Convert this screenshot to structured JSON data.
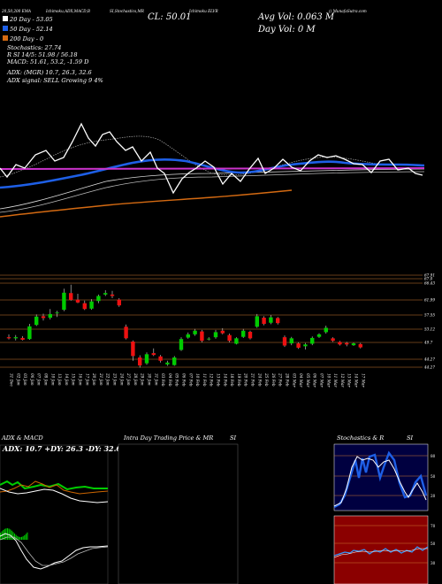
{
  "header": {
    "topline": [
      "20,50,200  EMA",
      "Ichimoku,ADX,MACD,B",
      "SI,Stochastics,MR",
      "Ichimoku ELVR",
      "() MunafaSutra.com"
    ],
    "ema20": "20 Day - 53.05",
    "ema50": "50 Day - 52.14",
    "ema200": "200 Day - 0",
    "stochastics": "Stochastics: 27.74",
    "rsi_line": "R                    SI 14/5: 51.98 / 56.18",
    "macd_line": "MACD: 51.61, 53.2, -1.59 D",
    "adx_line": "ADX:                         (MGR) 10.7, 26.3, 32.6",
    "adx_signal": "ADX  signal: SELL Growing 9 4%",
    "close": "CL: 50.01",
    "avg_vol": "Avg Vol: 0.063  M",
    "day_vol": "Day Vol: 0   M"
  },
  "panels": {
    "adx_macd": "ADX  & MACD",
    "adx_overlay": "ADX: 10.7 +DY: 26.3 -DY: 32.6",
    "intra": "Intra  Day Trading Price  & MR",
    "intra_si": "SI",
    "stoch": "Stochastics  & R",
    "stoch_si": "SI"
  },
  "colors": {
    "price_line": "#ffffff",
    "ema50_line": "#1e5fe6",
    "ema200_line": "#d46a12",
    "bb_band": "#cc33cc",
    "candle_up": "#00cc00",
    "candle_down": "#ee1111",
    "stoch_bg": "#000040",
    "rsi_bg": "#8b0000"
  },
  "chart_data": {
    "type": "candlestick",
    "price_levels": [
      "67.91",
      "67.0",
      "66.43",
      "61.99",
      "57.55",
      "53.12",
      "49.7",
      "44.27",
      "44.27"
    ],
    "dates": [
      "31 Dec",
      "02 Jan",
      "03 Jan",
      "06 Jan",
      "07 Jan",
      "08 Jan",
      "10 Jan",
      "13 Jan",
      "14 Jan",
      "15 Jan",
      "16 Jan",
      "17 Jan",
      "20 Jan",
      "21 Jan",
      "22 Jan",
      "23 Jan",
      "24 Jan",
      "27 Jan",
      "28 Jan",
      "29 Jan",
      "30 Jan",
      "31 Jan",
      "03 Feb",
      "04 Feb",
      "05 Feb",
      "06 Feb",
      "07 Feb",
      "10 Feb",
      "11 Feb",
      "12 Feb",
      "13 Feb",
      "14 Feb",
      "18 Feb",
      "19 Feb",
      "20 Feb",
      "21 Feb",
      "24 Feb",
      "25 Feb",
      "26 Feb",
      "27 Feb",
      "28 Feb",
      "03 Mar",
      "04 Mar",
      "05 Mar",
      "06 Mar",
      "07 Mar",
      "10 Mar",
      "11 Mar",
      "12 Mar",
      "13 Mar",
      "14 Mar",
      "17 Mar"
    ],
    "candles": [
      {
        "o": 52.8,
        "h": 53.6,
        "l": 52.2,
        "c": 52.5
      },
      {
        "o": 52.5,
        "h": 53.4,
        "l": 51.9,
        "c": 52.8
      },
      {
        "o": 52.6,
        "h": 53.1,
        "l": 51.9,
        "c": 52.1
      },
      {
        "o": 52.3,
        "h": 56.5,
        "l": 52.1,
        "c": 55.8
      },
      {
        "o": 56.2,
        "h": 59.1,
        "l": 55.9,
        "c": 58.5
      },
      {
        "o": 58.6,
        "h": 59.3,
        "l": 57.4,
        "c": 58.1
      },
      {
        "o": 58.2,
        "h": 60.6,
        "l": 57.7,
        "c": 59.2
      },
      {
        "o": 59.4,
        "h": 60.1,
        "l": 58.4,
        "c": 59.6
      },
      {
        "o": 60.4,
        "h": 66.2,
        "l": 60.0,
        "c": 65.1
      },
      {
        "o": 65.0,
        "h": 67.3,
        "l": 62.9,
        "c": 63.1
      },
      {
        "o": 63.2,
        "h": 64.8,
        "l": 62.2,
        "c": 62.4
      },
      {
        "o": 62.2,
        "h": 62.9,
        "l": 60.3,
        "c": 60.6
      },
      {
        "o": 60.7,
        "h": 63.3,
        "l": 60.4,
        "c": 62.7
      },
      {
        "o": 62.8,
        "h": 64.6,
        "l": 62.2,
        "c": 64.2
      },
      {
        "o": 64.6,
        "h": 65.8,
        "l": 64.2,
        "c": 65.0
      },
      {
        "o": 64.6,
        "h": 65.6,
        "l": 63.6,
        "c": 64.2
      },
      {
        "o": 63.2,
        "h": 63.6,
        "l": 61.2,
        "c": 61.6
      },
      {
        "o": 55.7,
        "h": 56.3,
        "l": 52.2,
        "c": 52.5
      },
      {
        "o": 51.6,
        "h": 51.9,
        "l": 46.3,
        "c": 47.6
      },
      {
        "o": 47.2,
        "h": 47.8,
        "l": 44.4,
        "c": 45.0
      },
      {
        "o": 45.6,
        "h": 48.6,
        "l": 45.2,
        "c": 48.1
      },
      {
        "o": 48.4,
        "h": 49.7,
        "l": 47.6,
        "c": 47.9
      },
      {
        "o": 47.5,
        "h": 47.9,
        "l": 45.8,
        "c": 46.3
      },
      {
        "o": 45.3,
        "h": 46.3,
        "l": 44.9,
        "c": 45.8
      },
      {
        "o": 45.1,
        "h": 47.6,
        "l": 44.9,
        "c": 47.2
      },
      {
        "o": 49.3,
        "h": 52.8,
        "l": 49.0,
        "c": 52.3
      },
      {
        "o": 52.7,
        "h": 54.1,
        "l": 52.4,
        "c": 53.6
      },
      {
        "o": 53.6,
        "h": 55.1,
        "l": 53.2,
        "c": 54.6
      },
      {
        "o": 54.4,
        "h": 54.8,
        "l": 51.4,
        "c": 51.8
      },
      {
        "o": 52.2,
        "h": 52.8,
        "l": 51.9,
        "c": 52.4
      },
      {
        "o": 52.8,
        "h": 54.8,
        "l": 52.4,
        "c": 54.2
      },
      {
        "o": 54.6,
        "h": 55.3,
        "l": 53.6,
        "c": 53.9
      },
      {
        "o": 53.4,
        "h": 53.8,
        "l": 51.4,
        "c": 51.8
      },
      {
        "o": 51.0,
        "h": 52.8,
        "l": 50.8,
        "c": 52.5
      },
      {
        "o": 52.9,
        "h": 55.1,
        "l": 52.6,
        "c": 54.6
      },
      {
        "o": 54.3,
        "h": 54.6,
        "l": 52.2,
        "c": 52.5
      },
      {
        "o": 55.7,
        "h": 59.2,
        "l": 55.4,
        "c": 58.6
      },
      {
        "o": 58.2,
        "h": 58.6,
        "l": 56.1,
        "c": 56.5
      },
      {
        "o": 56.8,
        "h": 58.9,
        "l": 56.4,
        "c": 58.3
      },
      {
        "o": 58.1,
        "h": 58.4,
        "l": 56.3,
        "c": 56.7
      },
      {
        "o": 52.8,
        "h": 53.3,
        "l": 50.1,
        "c": 50.5
      },
      {
        "o": 51.1,
        "h": 52.9,
        "l": 50.6,
        "c": 52.5
      },
      {
        "o": 51.1,
        "h": 51.4,
        "l": 49.6,
        "c": 49.9
      },
      {
        "o": 50.3,
        "h": 51.2,
        "l": 49.4,
        "c": 50.8
      },
      {
        "o": 51.0,
        "h": 53.0,
        "l": 50.6,
        "c": 52.6
      },
      {
        "o": 52.9,
        "h": 53.9,
        "l": 52.6,
        "c": 53.6
      },
      {
        "o": 54.2,
        "h": 56.0,
        "l": 53.8,
        "c": 55.4
      },
      {
        "o": 52.5,
        "h": 52.8,
        "l": 51.5,
        "c": 51.8
      },
      {
        "o": 51.5,
        "h": 51.8,
        "l": 50.5,
        "c": 50.8
      },
      {
        "o": 51.2,
        "h": 51.5,
        "l": 50.3,
        "c": 50.8
      },
      {
        "o": 50.6,
        "h": 51.3,
        "l": 50.4,
        "c": 51.1
      },
      {
        "o": 50.9,
        "h": 51.2,
        "l": 49.7,
        "c": 50.0
      }
    ]
  }
}
